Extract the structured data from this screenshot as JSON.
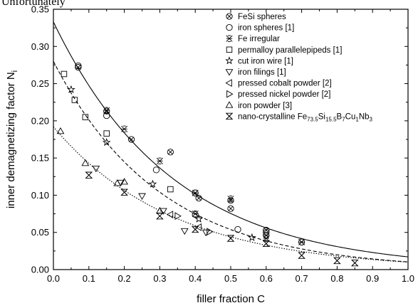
{
  "page": {
    "top_text": "Unfortunately"
  },
  "chart_data": {
    "type": "scatter",
    "xlabel": "filler fraction C",
    "ylabel": "inner demagnetizing factor N",
    "ylabel_sub": "i",
    "xlim": [
      0.0,
      1.0
    ],
    "ylim": [
      0.0,
      0.35
    ],
    "xticks": [
      "0.0",
      "0.1",
      "0.2",
      "0.3",
      "0.4",
      "0.5",
      "0.6",
      "0.7",
      "0.8",
      "0.9",
      "1.0"
    ],
    "yticks": [
      "0.00",
      "0.05",
      "0.10",
      "0.15",
      "0.20",
      "0.25",
      "0.30",
      "0.35"
    ],
    "legend_position": "top-right",
    "series": [
      {
        "name": "FeSi spheres",
        "marker": "circle-x",
        "x": [
          0.07,
          0.15,
          0.22,
          0.33,
          0.4,
          0.41,
          0.5,
          0.5,
          0.6,
          0.6,
          0.7
        ],
        "y": [
          0.272,
          0.213,
          0.175,
          0.158,
          0.103,
          0.096,
          0.093,
          0.082,
          0.053,
          0.046,
          0.037
        ]
      },
      {
        "name": "iron spheres [1]",
        "marker": "circle",
        "x": [
          0.07,
          0.15,
          0.29,
          0.4,
          0.52,
          0.6
        ],
        "y": [
          0.274,
          0.207,
          0.134,
          0.074,
          0.054,
          0.05
        ]
      },
      {
        "name": "Fe irregular",
        "marker": "asterisk",
        "x": [
          0.15,
          0.2,
          0.3,
          0.4,
          0.4,
          0.5,
          0.6,
          0.7
        ],
        "y": [
          0.214,
          0.189,
          0.146,
          0.103,
          0.075,
          0.095,
          0.042,
          0.037
        ]
      },
      {
        "name": "permalloy parallelepipeds [1]",
        "marker": "square",
        "x": [
          0.03,
          0.06,
          0.09,
          0.15,
          0.33
        ],
        "y": [
          0.263,
          0.228,
          0.205,
          0.183,
          0.108
        ]
      },
      {
        "name": "cut iron wire [1]",
        "marker": "star",
        "x": [
          0.05,
          0.15,
          0.28,
          0.41,
          0.56
        ],
        "y": [
          0.242,
          0.171,
          0.115,
          0.068,
          0.043
        ]
      },
      {
        "name": "iron filings [1]",
        "marker": "triangle-down",
        "x": [
          0.12,
          0.19,
          0.25,
          0.31,
          0.37,
          0.43
        ],
        "y": [
          0.136,
          0.117,
          0.099,
          0.079,
          0.052,
          0.05
        ]
      },
      {
        "name": "pressed cobalt powder [2]",
        "marker": "triangle-left",
        "x": [
          0.33,
          0.41
        ],
        "y": [
          0.074,
          0.057
        ]
      },
      {
        "name": "pressed nickel powder [2]",
        "marker": "triangle-right",
        "x": [
          0.35,
          0.44
        ],
        "y": [
          0.072,
          0.051
        ]
      },
      {
        "name": "iron powder [3]",
        "marker": "triangle-up",
        "x": [
          0.02,
          0.09,
          0.18,
          0.2,
          0.3
        ],
        "y": [
          0.186,
          0.143,
          0.116,
          0.118,
          0.079
        ]
      },
      {
        "name_parts": [
          "nano-crystalline Fe",
          "73.5",
          "Si",
          "15.5",
          "B",
          "7",
          "Cu",
          "1",
          "Nb",
          "3"
        ],
        "marker": "bowtie",
        "x": [
          0.1,
          0.2,
          0.3,
          0.4,
          0.5,
          0.6,
          0.7,
          0.8,
          0.85
        ],
        "y": [
          0.127,
          0.104,
          0.072,
          0.054,
          0.042,
          0.035,
          0.019,
          0.012,
          0.009
        ]
      }
    ],
    "fit_curves": [
      {
        "style": "solid",
        "a": 0.333,
        "k": 2.97
      },
      {
        "style": "dashed",
        "a": 0.28,
        "k": 3.3
      },
      {
        "style": "dotted",
        "a": 0.192,
        "k": 2.95
      }
    ]
  }
}
